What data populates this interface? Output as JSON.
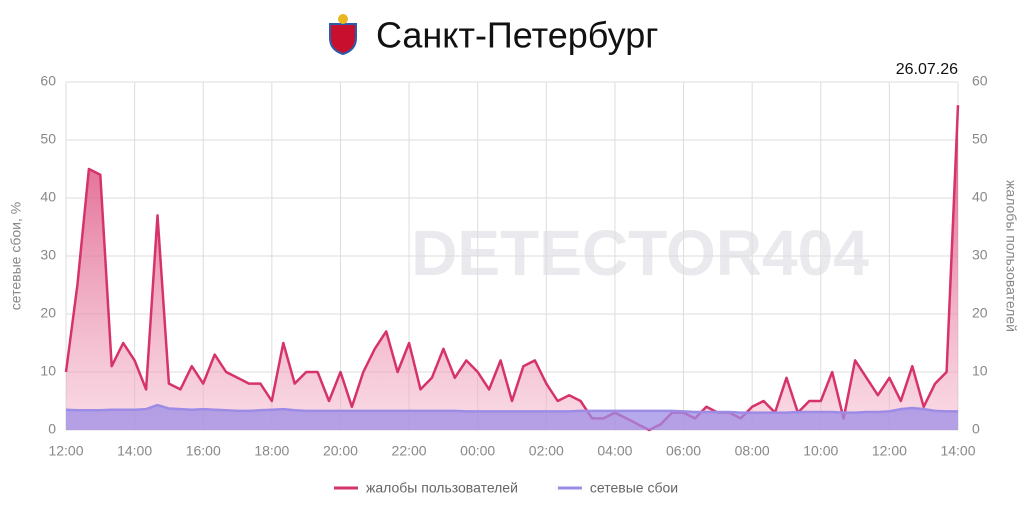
{
  "chart_data": {
    "type": "line",
    "title": "Санкт-Петербург",
    "date": "26.07.26",
    "watermark": "DETECTOR404",
    "ylabel": "сетевые сбои, %",
    "y2label": "жалобы пользователей",
    "x": [
      "12:00",
      "12:20",
      "12:40",
      "13:00",
      "13:20",
      "13:40",
      "14:00",
      "14:20",
      "14:40",
      "15:00",
      "15:20",
      "15:40",
      "16:00",
      "16:20",
      "16:40",
      "17:00",
      "17:20",
      "17:40",
      "18:00",
      "18:20",
      "18:40",
      "19:00",
      "19:20",
      "19:40",
      "20:00",
      "20:20",
      "20:40",
      "21:00",
      "21:20",
      "21:40",
      "22:00",
      "22:20",
      "22:40",
      "23:00",
      "23:20",
      "23:40",
      "00:00",
      "00:20",
      "00:40",
      "01:00",
      "01:20",
      "01:40",
      "02:00",
      "02:20",
      "02:40",
      "03:00",
      "03:20",
      "03:40",
      "04:00",
      "04:20",
      "04:40",
      "05:00",
      "05:20",
      "05:40",
      "06:00",
      "06:20",
      "06:40",
      "07:00",
      "07:20",
      "07:40",
      "08:00",
      "08:20",
      "08:40",
      "09:00",
      "09:20",
      "09:40",
      "10:00",
      "10:20",
      "10:40",
      "11:00",
      "11:20",
      "11:40",
      "12:00",
      "12:20",
      "12:40",
      "13:00",
      "13:20",
      "13:40",
      "14:00"
    ],
    "series": [
      {
        "name": "жалобы пользователей",
        "color": "#d6336c",
        "axis": "y2",
        "values": [
          10,
          25,
          45,
          44,
          11,
          15,
          12,
          7,
          37,
          8,
          7,
          11,
          8,
          13,
          10,
          9,
          8,
          8,
          5,
          15,
          8,
          10,
          10,
          5,
          10,
          4,
          10,
          14,
          17,
          10,
          15,
          7,
          9,
          14,
          9,
          12,
          10,
          7,
          12,
          5,
          11,
          12,
          8,
          5,
          6,
          5,
          2,
          2,
          3,
          2,
          1,
          0,
          1,
          3,
          3,
          2,
          4,
          3,
          3,
          2,
          4,
          5,
          3,
          9,
          3,
          5,
          5,
          10,
          2,
          12,
          9,
          6,
          9,
          5,
          11,
          4,
          8,
          10,
          56
        ]
      },
      {
        "name": "сетевые сбои",
        "color": "#9d8ce6",
        "values": [
          3.5,
          3.4,
          3.4,
          3.4,
          3.5,
          3.5,
          3.5,
          3.6,
          4.3,
          3.7,
          3.6,
          3.5,
          3.6,
          3.5,
          3.4,
          3.3,
          3.3,
          3.4,
          3.5,
          3.6,
          3.4,
          3.3,
          3.3,
          3.3,
          3.3,
          3.3,
          3.3,
          3.3,
          3.3,
          3.3,
          3.3,
          3.3,
          3.3,
          3.3,
          3.3,
          3.2,
          3.2,
          3.2,
          3.2,
          3.2,
          3.2,
          3.2,
          3.2,
          3.2,
          3.2,
          3.3,
          3.3,
          3.3,
          3.3,
          3.3,
          3.3,
          3.3,
          3.3,
          3.3,
          3.2,
          3.1,
          3.1,
          3.1,
          3.1,
          3.0,
          3.0,
          3.0,
          3.0,
          3.0,
          3.1,
          3.1,
          3.1,
          3.1,
          3.0,
          3.0,
          3.1,
          3.1,
          3.2,
          3.6,
          3.8,
          3.6,
          3.3,
          3.2,
          3.2
        ]
      }
    ],
    "ylim": [
      0,
      60
    ],
    "yticks": [
      0,
      10,
      20,
      30,
      40,
      50,
      60
    ],
    "y2lim": [
      0,
      60
    ],
    "y2ticks": [
      0,
      10,
      20,
      30,
      40,
      50,
      60
    ],
    "grid": true
  }
}
